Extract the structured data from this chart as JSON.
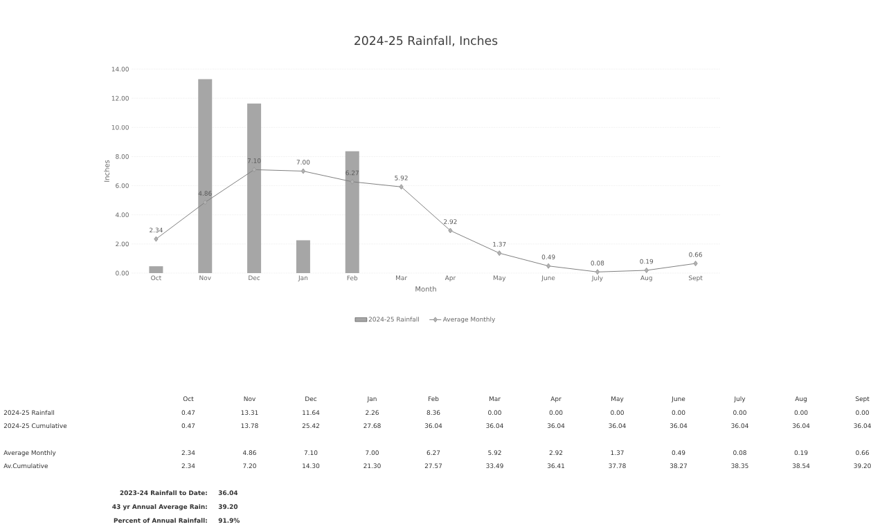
{
  "chart_data": [
    {
      "type": "bar",
      "title": "2024-25 Rainfall, Inches",
      "xlabel": "Month",
      "ylabel": "Inches",
      "categories": [
        "Oct",
        "Nov",
        "Dec",
        "Jan",
        "Feb",
        "Mar",
        "Apr",
        "May",
        "June",
        "July",
        "Aug",
        "Sept"
      ],
      "series": [
        {
          "name": "2024-25 Rainfall",
          "color": "#a6a6a6",
          "values": [
            0.47,
            13.31,
            11.64,
            2.26,
            8.36,
            0.0,
            0.0,
            0.0,
            0.0,
            0.0,
            0.0,
            0.0
          ]
        },
        {
          "name": "Average Monthly",
          "type": "line",
          "color": "#7f7f7f",
          "marker": "diamond",
          "values": [
            2.34,
            4.86,
            7.1,
            7.0,
            6.27,
            5.92,
            2.92,
            1.37,
            0.49,
            0.08,
            0.19,
            0.66
          ],
          "value_labels": [
            "2.34",
            "4.86",
            "7.10",
            "7.00",
            "6.27",
            "5.92",
            "2.92",
            "1.37",
            "0.49",
            "0.08",
            "0.19",
            "0.66"
          ]
        }
      ],
      "ylim": [
        0,
        14
      ],
      "yticks": [
        {
          "value": 0,
          "label": "0.00"
        },
        {
          "value": 2,
          "label": "2.00"
        },
        {
          "value": 4,
          "label": "4.00"
        },
        {
          "value": 6,
          "label": "6.00"
        },
        {
          "value": 8,
          "label": "8.00"
        },
        {
          "value": 10,
          "label": "10.00"
        },
        {
          "value": 12,
          "label": "12.00"
        },
        {
          "value": 14,
          "label": "14.00"
        }
      ],
      "grid": "y",
      "legend": "bottom"
    },
    {
      "type": "other",
      "categories": [
        "Oct",
        "Nov",
        "Dec",
        "Jan",
        "Feb",
        "Mar",
        "Apr",
        "May",
        "June",
        "July",
        "Aug",
        "Sept"
      ],
      "series": [
        {
          "name": "2024-25 Rainfall",
          "values": [
            0.47,
            13.31,
            11.64,
            2.26,
            8.36,
            0.0,
            0.0,
            0.0,
            0.0,
            0.0,
            0.0,
            0.0
          ],
          "value_labels": [
            "0.47",
            "13.31",
            "11.64",
            "2.26",
            "8.36",
            "0.00",
            "0.00",
            "0.00",
            "0.00",
            "0.00",
            "0.00",
            "0.00"
          ]
        },
        {
          "name": "2024-25 Cumulative",
          "values": [
            0.47,
            13.78,
            25.42,
            27.68,
            36.04,
            36.04,
            36.04,
            36.04,
            36.04,
            36.04,
            36.04,
            36.04
          ],
          "value_labels": [
            "0.47",
            "13.78",
            "25.42",
            "27.68",
            "36.04",
            "36.04",
            "36.04",
            "36.04",
            "36.04",
            "36.04",
            "36.04",
            "36.04"
          ]
        },
        {
          "name": "Average Monthly",
          "values": [
            2.34,
            4.86,
            7.1,
            7.0,
            6.27,
            5.92,
            2.92,
            1.37,
            0.49,
            0.08,
            0.19,
            0.66
          ],
          "value_labels": [
            "2.34",
            "4.86",
            "7.10",
            "7.00",
            "6.27",
            "5.92",
            "2.92",
            "1.37",
            "0.49",
            "0.08",
            "0.19",
            "0.66"
          ]
        },
        {
          "name": "Av.Cumulative",
          "values": [
            2.34,
            7.2,
            14.3,
            21.3,
            27.57,
            33.49,
            36.41,
            37.78,
            38.27,
            38.35,
            38.54,
            39.2
          ],
          "value_labels": [
            "2.34",
            "7.20",
            "14.30",
            "21.30",
            "27.57",
            "33.49",
            "36.41",
            "37.78",
            "38.27",
            "38.35",
            "38.54",
            "39.20"
          ]
        }
      ],
      "annotations": [
        "2023-24 Rainfall to Date:",
        "36.04",
        "43 yr Annual Average Rain:",
        "39.20",
        "Percent of Annual Rainfall:",
        "91.9%"
      ]
    }
  ]
}
